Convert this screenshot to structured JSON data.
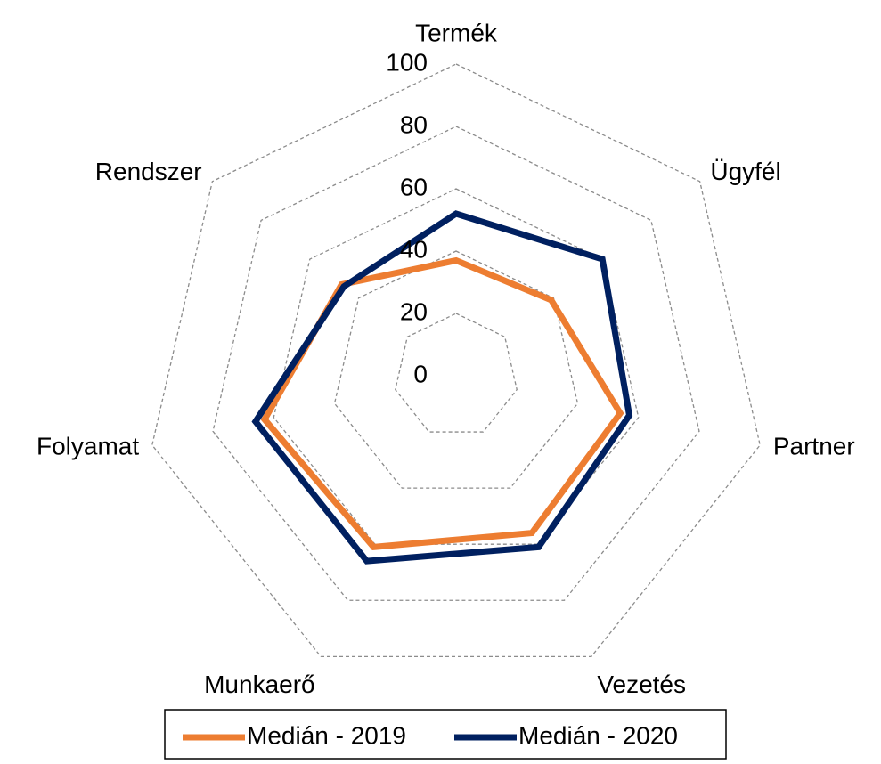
{
  "chart_data": {
    "type": "radar",
    "categories": [
      "Termék",
      "Ügyfél",
      "Partner",
      "Vezetés",
      "Munkaerő",
      "Folyamat",
      "Rendszer"
    ],
    "series": [
      {
        "name": "Medián - 2019",
        "color": "#ed7d31",
        "values": [
          37,
          39,
          54,
          56,
          61,
          63,
          47
        ]
      },
      {
        "name": "Medián - 2020",
        "color": "#002060",
        "values": [
          52,
          60,
          57,
          61,
          66,
          66,
          46
        ]
      }
    ],
    "ylim": [
      0,
      100
    ],
    "yticks": [
      0,
      20,
      40,
      60,
      80,
      100
    ],
    "grid": true,
    "legend": "bottom"
  }
}
